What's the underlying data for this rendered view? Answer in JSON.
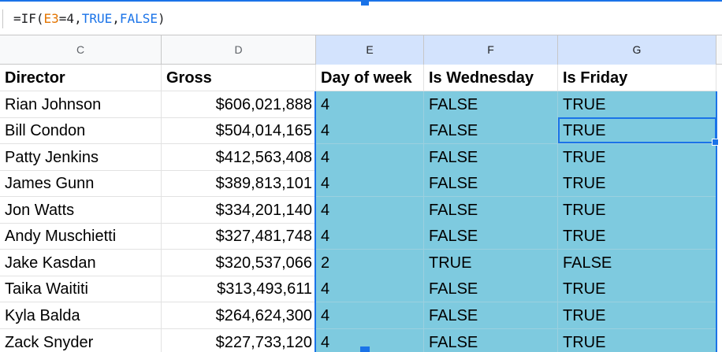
{
  "formula_bar": {
    "parts": [
      "=IF(",
      "E3",
      "=4,",
      "TRUE",
      ",",
      "FALSE",
      ")"
    ]
  },
  "columns": [
    "C",
    "D",
    "E",
    "F",
    "G"
  ],
  "headers": {
    "director": "Director",
    "gross": "Gross",
    "day_of_week": "Day of week",
    "is_wednesday": "Is Wednesday",
    "is_friday": "Is Friday"
  },
  "rows": [
    [
      "Rian Johnson",
      "$606,021,888",
      "4",
      "FALSE",
      "TRUE"
    ],
    [
      "Bill Condon",
      "$504,014,165",
      "4",
      "FALSE",
      "TRUE"
    ],
    [
      "Patty Jenkins",
      "$412,563,408",
      "4",
      "FALSE",
      "TRUE"
    ],
    [
      "James Gunn",
      "$389,813,101",
      "4",
      "FALSE",
      "TRUE"
    ],
    [
      "Jon Watts",
      "$334,201,140",
      "4",
      "FALSE",
      "TRUE"
    ],
    [
      "Andy Muschietti",
      "$327,481,748",
      "4",
      "FALSE",
      "TRUE"
    ],
    [
      "Jake Kasdan",
      "$320,537,066",
      "2",
      "TRUE",
      "FALSE"
    ],
    [
      "Taika Waititi",
      "$313,493,611",
      "4",
      "FALSE",
      "TRUE"
    ],
    [
      "Kyla Balda",
      "$264,624,300",
      "4",
      "FALSE",
      "TRUE"
    ],
    [
      "Zack Snyder",
      "$227,733,120",
      "4",
      "FALSE",
      "TRUE"
    ]
  ],
  "colors": {
    "selection_fill": "#7ecadf",
    "selection_border": "#1a73e8",
    "reference_color": "#e37400",
    "keyword_color": "#1a73e8"
  }
}
